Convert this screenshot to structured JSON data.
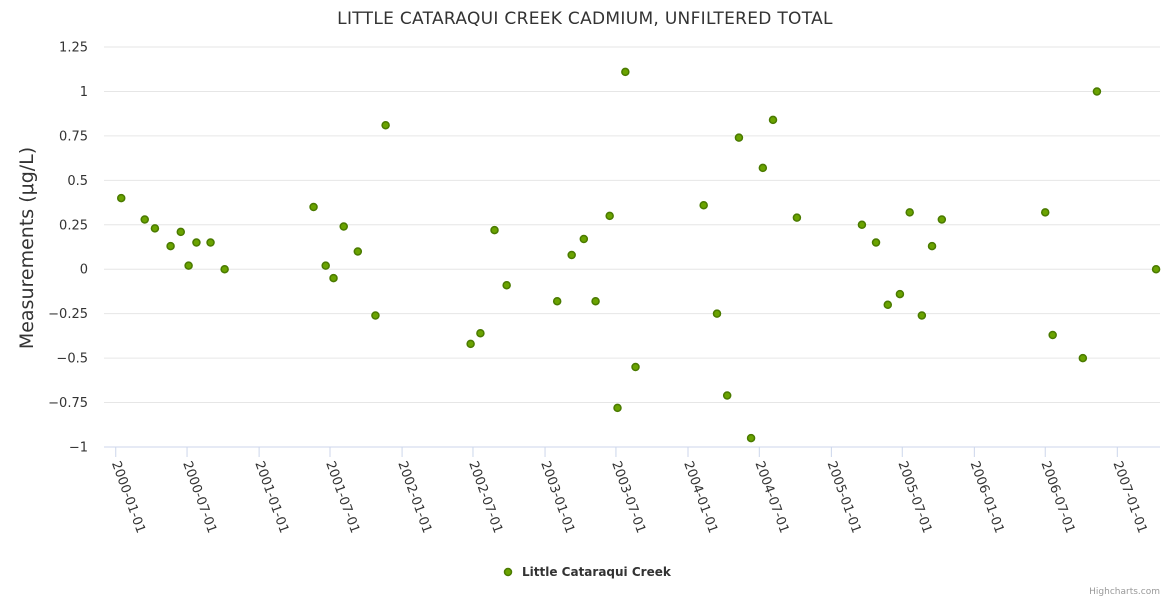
{
  "chart_data": {
    "type": "scatter",
    "title": "LITTLE CATARAQUI CREEK CADMIUM, UNFILTERED TOTAL",
    "xlabel": "",
    "ylabel": "Measurements (μg/L)",
    "ylim": [
      -1,
      1.25
    ],
    "yticks": [
      1.25,
      1,
      0.75,
      0.5,
      0.25,
      0,
      -0.25,
      -0.5,
      -0.75,
      -1
    ],
    "ytick_labels": [
      "1.25",
      "1",
      "0.75",
      "0.5",
      "0.25",
      "0",
      "−0.25",
      "−0.5",
      "−0.75",
      "−1"
    ],
    "xlim": [
      "1999-12-02",
      "2007-04-20"
    ],
    "xticks": [
      "2000-01-01",
      "2000-07-01",
      "2001-01-01",
      "2001-07-01",
      "2002-01-01",
      "2002-07-01",
      "2003-01-01",
      "2003-07-01",
      "2004-01-01",
      "2004-07-01",
      "2005-01-01",
      "2005-07-01",
      "2006-01-01",
      "2006-07-01",
      "2007-01-01"
    ],
    "legend": "bottom-center",
    "grid": true,
    "series": [
      {
        "name": "Little Cataraqui Creek",
        "color": "#6aa300",
        "x": [
          "2000-01-15",
          "2000-03-15",
          "2000-04-10",
          "2000-05-20",
          "2000-06-15",
          "2000-07-05",
          "2000-07-25",
          "2000-08-30",
          "2000-10-05",
          "2001-05-20",
          "2001-06-20",
          "2001-07-10",
          "2001-08-05",
          "2001-09-10",
          "2001-10-25",
          "2001-11-20",
          "2002-06-25",
          "2002-07-20",
          "2002-08-25",
          "2002-09-25",
          "2003-02-01",
          "2003-03-10",
          "2003-04-10",
          "2003-05-10",
          "2003-06-15",
          "2003-07-05",
          "2003-07-25",
          "2003-08-20",
          "2004-02-10",
          "2004-03-15",
          "2004-04-10",
          "2004-05-10",
          "2004-06-10",
          "2004-07-10",
          "2004-08-05",
          "2004-10-05",
          "2005-03-20",
          "2005-04-25",
          "2005-05-25",
          "2005-06-25",
          "2005-07-20",
          "2005-08-20",
          "2005-09-15",
          "2005-10-10",
          "2006-07-01",
          "2006-07-20",
          "2006-10-05",
          "2006-11-10",
          "2007-04-10"
        ],
        "y": [
          0.4,
          0.28,
          0.23,
          0.13,
          0.21,
          0.02,
          0.15,
          0.15,
          0.0,
          0.35,
          0.02,
          -0.05,
          0.24,
          0.1,
          -0.26,
          0.81,
          -0.42,
          -0.36,
          0.22,
          -0.09,
          -0.18,
          0.08,
          0.17,
          -0.18,
          0.3,
          -0.78,
          1.11,
          -0.55,
          0.36,
          -0.25,
          -0.71,
          0.74,
          -0.95,
          0.57,
          0.84,
          0.29,
          0.25,
          0.15,
          -0.2,
          -0.14,
          0.32,
          -0.26,
          0.13,
          0.28,
          0.32,
          -0.37,
          -0.5,
          1.0,
          0.0
        ]
      }
    ]
  },
  "credits": "Highcharts.com"
}
